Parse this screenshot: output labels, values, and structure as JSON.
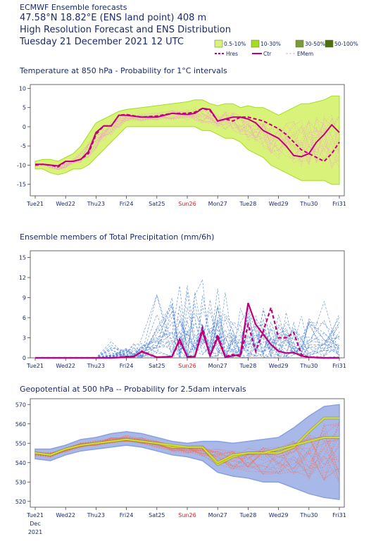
{
  "header": {
    "line1": "ECMWF Ensemble forecasts",
    "line2": " 47.58°N 18.82°E (ENS land point) 408 m",
    "line3": "High Resolution Forecast and ENS Distribution",
    "line4": "Tuesday 21 December 2021 12 UTC"
  },
  "legend": {
    "prob_bins": [
      {
        "label": "0.5-10%",
        "color": "#d9f27a"
      },
      {
        "label": "10-30%",
        "color": "#a6dc1c"
      },
      {
        "label": "30-50%",
        "color": "#7a9a3c"
      },
      {
        "label": "50-100%",
        "color": "#4e6e12"
      }
    ],
    "lines": [
      {
        "label": "Hres",
        "color": "#c0007a",
        "style": "dashed"
      },
      {
        "label": "Ctr",
        "color": "#c0007a",
        "style": "solid"
      },
      {
        "label": "EMem",
        "color": "#f0a0c8",
        "style": "dashed"
      }
    ]
  },
  "x_axis": {
    "tick_labels": [
      "Tue21",
      "Wed22",
      "Thu23",
      "Fri24",
      "Sat25",
      "Sun26",
      "Mon27",
      "Tue28",
      "Wed29",
      "Thu30",
      "Fri31"
    ],
    "highlight_label": "Sun26",
    "highlight_color": "#e02020",
    "extra_labels": [
      "Dec",
      "2021"
    ]
  },
  "chart_data": [
    {
      "type": "area",
      "title": "Temperature at 850 hPa - Probability for 1°C intervals",
      "ylim": [
        -18,
        11
      ],
      "yticks": [
        10,
        5,
        0,
        -5,
        -10,
        -15
      ],
      "colors": {
        "band": "#d9f27a",
        "band_edge": "#a6dc1c",
        "members": "#f0a0c8",
        "line": "#c0007a"
      },
      "x": [
        0,
        0.25,
        0.5,
        0.75,
        1,
        1.25,
        1.5,
        1.75,
        2,
        2.25,
        2.5,
        2.75,
        3,
        3.5,
        4,
        4.5,
        5,
        5.25,
        5.5,
        5.75,
        6,
        6.25,
        6.5,
        6.75,
        7,
        7.25,
        7.5,
        7.75,
        8,
        8.25,
        8.5,
        8.75,
        9,
        9.25,
        9.5,
        9.75,
        10
      ],
      "band_upper": [
        -9,
        -8.5,
        -8.5,
        -9,
        -8,
        -7,
        -5,
        -2,
        1,
        2,
        3,
        4,
        4.5,
        5,
        5.5,
        6,
        6.5,
        7,
        7,
        6,
        5.5,
        6,
        6,
        5,
        5.5,
        5,
        5,
        4,
        3,
        4,
        5,
        6,
        6,
        6.5,
        7,
        8,
        8
      ],
      "band_lower": [
        -11,
        -11,
        -12,
        -12.5,
        -12,
        -11,
        -11,
        -10,
        -8,
        -6,
        -4,
        -2,
        0,
        0,
        0,
        0,
        0,
        0,
        -1,
        -1,
        -2,
        -3,
        -3,
        -4,
        -6,
        -7,
        -8,
        -10,
        -11,
        -12,
        -13,
        -14,
        -14,
        -14,
        -14,
        -15,
        -15
      ],
      "series": [
        {
          "name": "Hres",
          "style": "dashed",
          "values": [
            -10,
            -9.8,
            -10,
            -10.5,
            -9,
            -9,
            -8.5,
            -7,
            -2,
            0.2,
            0.2,
            3,
            3.2,
            2.5,
            2.8,
            3.5,
            3.5,
            3.8,
            4.8,
            4.2,
            1.5,
            2,
            1.5,
            2.5,
            2.5,
            2,
            1.5,
            0.5,
            -0.5,
            -2,
            -4,
            -6,
            -7,
            -8,
            -9,
            -7,
            -4
          ]
        },
        {
          "name": "Ctr",
          "style": "solid",
          "values": [
            -9.8,
            -9.8,
            -10,
            -10.2,
            -9,
            -9,
            -8.5,
            -6.5,
            -1.5,
            0.2,
            0.2,
            3,
            3,
            2.5,
            2.5,
            3.5,
            3.2,
            3.5,
            4.8,
            4.5,
            1.5,
            2,
            2.5,
            2.5,
            2,
            1,
            -1,
            -2,
            -3,
            -5,
            -7.5,
            -7.8,
            -7,
            -4,
            -2,
            0.5,
            -1.5
          ]
        }
      ]
    },
    {
      "type": "line",
      "title": "Ensemble members of Total Precipitation (mm/6h)",
      "ylim": [
        0,
        16
      ],
      "yticks": [
        15,
        12,
        9,
        6,
        3,
        0
      ],
      "colors": {
        "members": "#4a80d8",
        "line": "#c0007a"
      },
      "x": [
        0,
        0.5,
        1,
        1.5,
        2,
        2.5,
        3,
        3.25,
        3.5,
        4,
        4.5,
        4.75,
        5,
        5.25,
        5.5,
        5.75,
        6,
        6.25,
        6.5,
        6.75,
        7,
        7.25,
        7.5,
        7.75,
        8,
        8.25,
        8.5,
        8.75,
        9,
        9.5,
        10
      ],
      "series": [
        {
          "name": "Hres",
          "style": "dashed",
          "values": [
            0,
            0,
            0,
            0,
            0,
            0,
            0.2,
            0.2,
            1,
            0.1,
            0.2,
            2.5,
            0.2,
            0.2,
            4.5,
            0.3,
            3.5,
            0.2,
            0.5,
            0.2,
            5,
            1,
            4,
            7.5,
            3,
            3,
            3.8,
            0.5,
            0.1,
            0,
            0
          ]
        },
        {
          "name": "Ctr",
          "style": "solid",
          "values": [
            0,
            0,
            0,
            0,
            0,
            0,
            0.1,
            0.2,
            0.9,
            0.1,
            0.2,
            2.8,
            0.1,
            0.2,
            4,
            0.3,
            3,
            0.1,
            0.3,
            0.5,
            8.2,
            5,
            3.5,
            2,
            1,
            0.7,
            0.8,
            0.3,
            0.1,
            0,
            0
          ]
        }
      ]
    },
    {
      "type": "area",
      "title": "Geopotential at 500 hPa -- Probability for 2.5dam intervals",
      "ylim": [
        517,
        573
      ],
      "yticks": [
        570,
        560,
        550,
        540,
        530,
        520
      ],
      "colors": {
        "band": "#a8b8e8",
        "band_edge": "#8aa0e0",
        "members": "#f07060",
        "line": "#d8e020"
      },
      "x": [
        0,
        0.5,
        1,
        1.5,
        2,
        2.5,
        3,
        3.5,
        4,
        4.5,
        5,
        5.5,
        6,
        6.5,
        7,
        7.5,
        8,
        8.5,
        9,
        9.5,
        10
      ],
      "band_upper": [
        547,
        547,
        549,
        552,
        553,
        555,
        556,
        555,
        553,
        551,
        550,
        551,
        551,
        550,
        551,
        552,
        553,
        558,
        564,
        569,
        570
      ],
      "band_lower": [
        542,
        541,
        544,
        546,
        547,
        548,
        549,
        548,
        546,
        544,
        543,
        541,
        535,
        533,
        532,
        530,
        530,
        527,
        524,
        522,
        521
      ],
      "series": [
        {
          "name": "Hres",
          "style": "solid",
          "values": [
            545,
            544,
            547,
            549,
            550,
            551,
            552,
            551,
            550,
            548,
            548,
            548,
            539,
            543,
            545,
            545,
            545,
            548,
            556,
            563,
            563
          ]
        },
        {
          "name": "Ctr",
          "style": "solid",
          "values": [
            545,
            544,
            547,
            549,
            550,
            551,
            552,
            551,
            550,
            549,
            548,
            548,
            540,
            544,
            545,
            545,
            547,
            549,
            551,
            553,
            553
          ]
        }
      ]
    }
  ]
}
